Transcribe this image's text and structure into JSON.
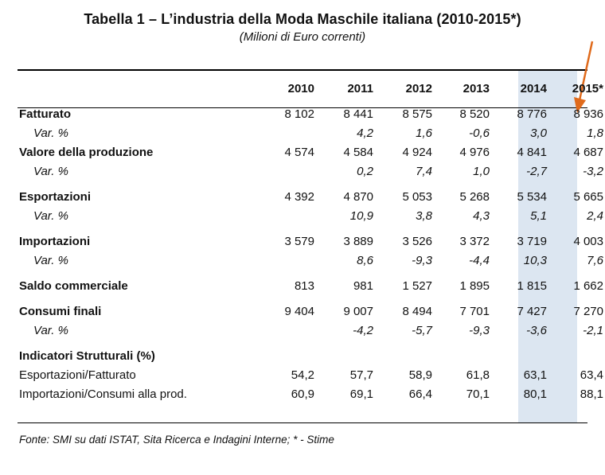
{
  "title": "Tabella 1 – L’industria della Moda Maschile italiana (2010-2015*)",
  "subtitle": "(Milioni di Euro correnti)",
  "years": [
    "2010",
    "2011",
    "2012",
    "2013",
    "2014",
    "2015*"
  ],
  "rows": {
    "fatturato": {
      "label": "Fatturato",
      "values": [
        "8 102",
        "8 441",
        "8 575",
        "8 520",
        "8 776",
        "8 936"
      ]
    },
    "fatturato_var": {
      "label": "Var. %",
      "values": [
        "",
        "4,2",
        "1,6",
        "-0,6",
        "3,0",
        "1,8"
      ]
    },
    "produzione": {
      "label": "Valore della produzione",
      "values": [
        "4 574",
        "4 584",
        "4 924",
        "4 976",
        "4 841",
        "4 687"
      ]
    },
    "produzione_var": {
      "label": "Var. %",
      "values": [
        "",
        "0,2",
        "7,4",
        "1,0",
        "-2,7",
        "-3,2"
      ]
    },
    "esportazioni": {
      "label": "Esportazioni",
      "values": [
        "4 392",
        "4 870",
        "5 053",
        "5 268",
        "5 534",
        "5 665"
      ]
    },
    "esportazioni_var": {
      "label": "Var. %",
      "values": [
        "",
        "10,9",
        "3,8",
        "4,3",
        "5,1",
        "2,4"
      ]
    },
    "importazioni": {
      "label": "Importazioni",
      "values": [
        "3 579",
        "3 889",
        "3 526",
        "3 372",
        "3 719",
        "4 003"
      ]
    },
    "importazioni_var": {
      "label": "Var. %",
      "values": [
        "",
        "8,6",
        "-9,3",
        "-4,4",
        "10,3",
        "7,6"
      ]
    },
    "saldo": {
      "label": "Saldo commerciale",
      "values": [
        "813",
        "981",
        "1 527",
        "1 895",
        "1 815",
        "1 662"
      ]
    },
    "consumi": {
      "label": "Consumi finali",
      "values": [
        "9 404",
        "9 007",
        "8 494",
        "7 701",
        "7 427",
        "7 270"
      ]
    },
    "consumi_var": {
      "label": "Var. %",
      "values": [
        "",
        "-4,2",
        "-5,7",
        "-9,3",
        "-3,6",
        "-2,1"
      ]
    },
    "indicatori": {
      "label": "Indicatori Strutturali (%)"
    },
    "esp_fatt": {
      "label": "Esportazioni/Fatturato",
      "values": [
        "54,2",
        "57,7",
        "58,9",
        "61,8",
        "63,1",
        "63,4"
      ]
    },
    "imp_cons": {
      "label": "Importazioni/Consumi alla prod.",
      "values": [
        "60,9",
        "69,1",
        "66,4",
        "70,1",
        "80,1",
        "88,1"
      ]
    }
  },
  "source": "Fonte: SMI su dati ISTAT, Sita Ricerca e Indagini Interne; * - Stime",
  "colors": {
    "highlight_column": "#dce6f1",
    "arrow": "#e06a1b",
    "text": "#111111"
  }
}
